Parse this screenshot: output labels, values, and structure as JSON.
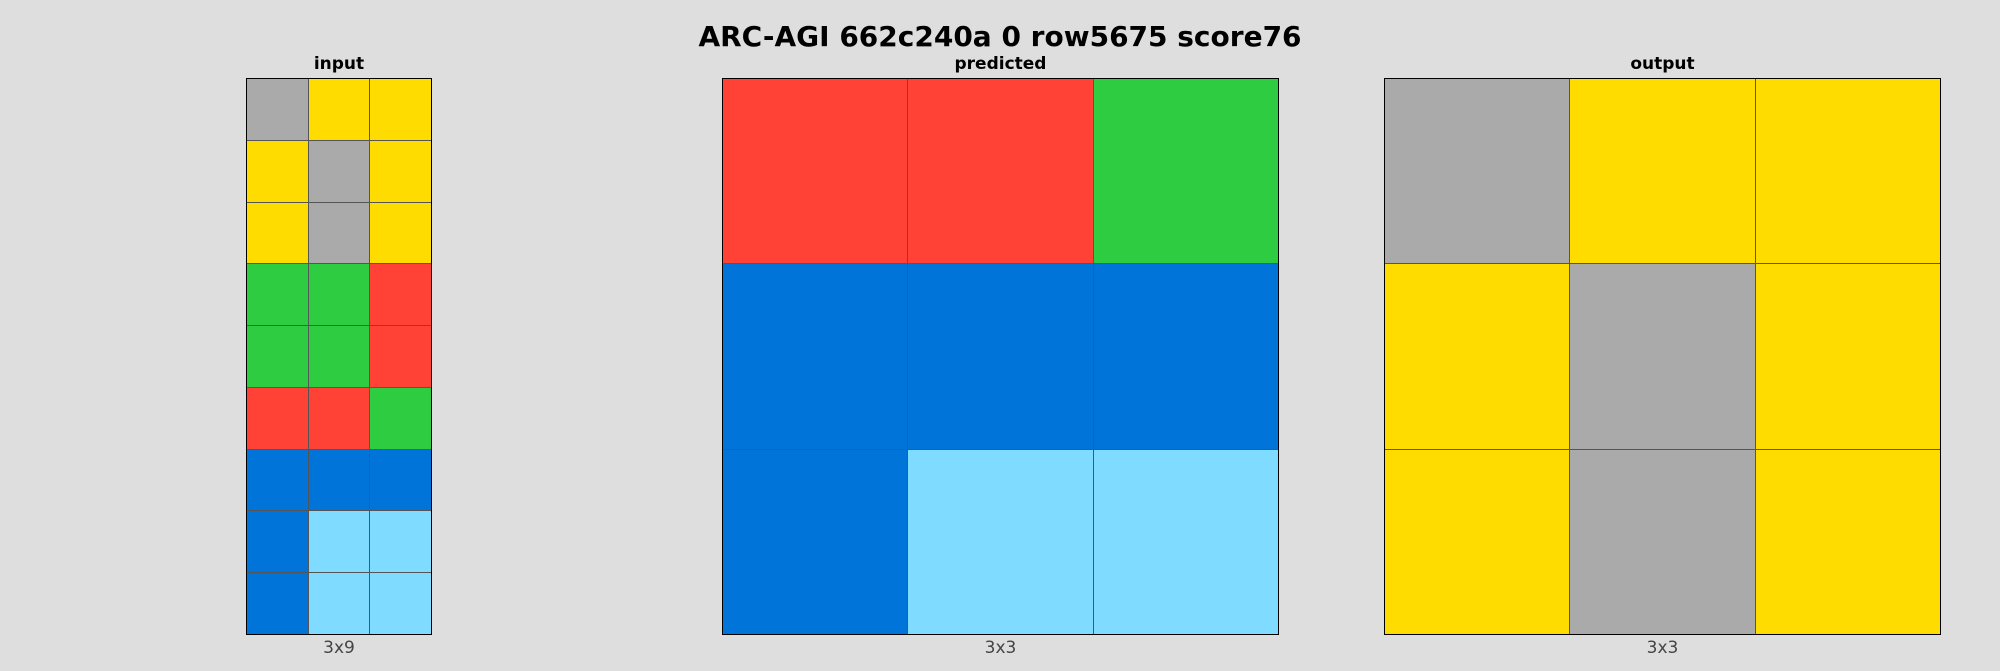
{
  "title": "ARC-AGI 662c240a 0 row5675 score76",
  "palette": {
    "0": "#000000",
    "1": "#0074D9",
    "2": "#FF4136",
    "3": "#2ECC40",
    "4": "#FFDC00",
    "5": "#AAAAAA",
    "6": "#F012BE",
    "7": "#FF851B",
    "8": "#7FDBFF",
    "9": "#870C25"
  },
  "panels": [
    {
      "id": "input",
      "label": "input",
      "size_label": "3x9",
      "grid": [
        [
          5,
          4,
          4
        ],
        [
          4,
          5,
          4
        ],
        [
          4,
          5,
          4
        ],
        [
          3,
          3,
          2
        ],
        [
          3,
          3,
          2
        ],
        [
          2,
          2,
          3
        ],
        [
          1,
          1,
          1
        ],
        [
          1,
          8,
          8
        ],
        [
          1,
          8,
          8
        ]
      ]
    },
    {
      "id": "predicted",
      "label": "predicted",
      "size_label": "3x3",
      "grid": [
        [
          2,
          2,
          3
        ],
        [
          1,
          1,
          1
        ],
        [
          1,
          8,
          8
        ]
      ]
    },
    {
      "id": "output",
      "label": "output",
      "size_label": "3x3",
      "grid": [
        [
          5,
          4,
          4
        ],
        [
          4,
          5,
          4
        ],
        [
          4,
          5,
          4
        ]
      ]
    }
  ]
}
